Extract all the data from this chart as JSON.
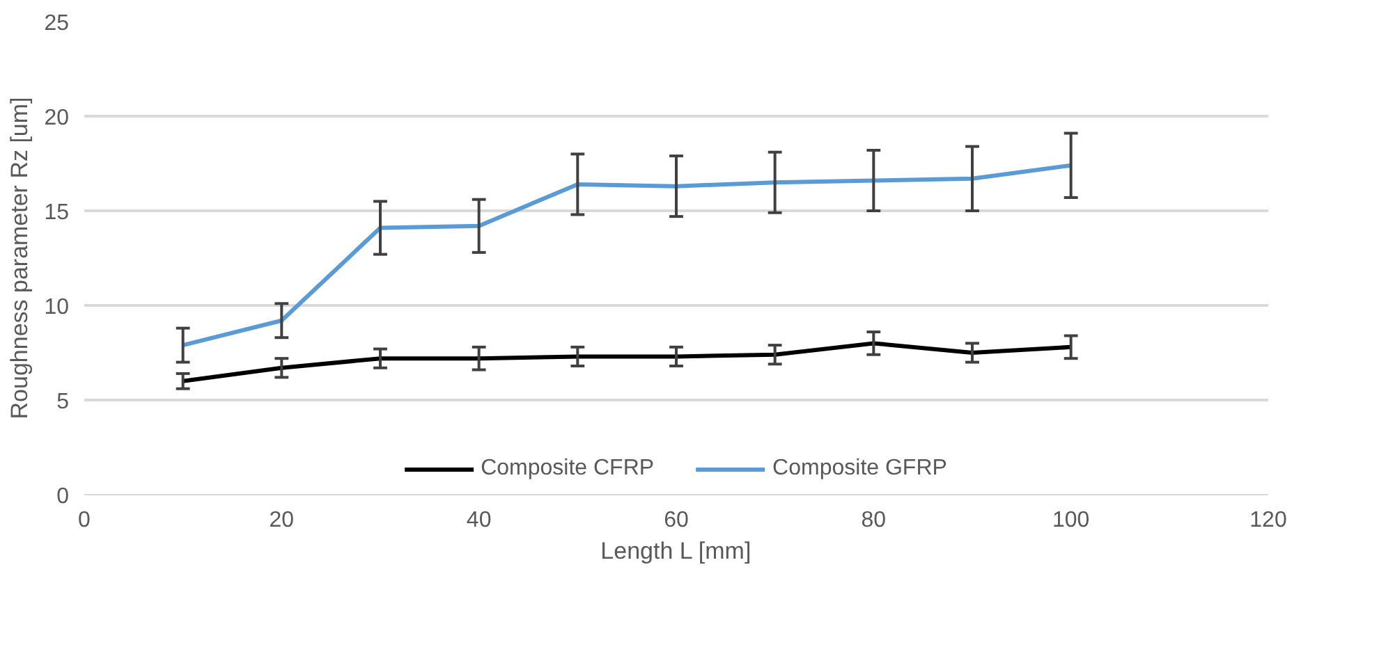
{
  "chart_data": {
    "type": "line",
    "xlabel": "Length L [mm]",
    "ylabel": "Roughness parameter Rz [um]",
    "x": [
      10,
      20,
      30,
      40,
      50,
      60,
      70,
      80,
      90,
      100
    ],
    "series": [
      {
        "name": "Composite CFRP",
        "color": "#000000",
        "values": [
          6.0,
          6.7,
          7.2,
          7.2,
          7.3,
          7.3,
          7.4,
          8.0,
          7.5,
          7.8
        ],
        "errors": [
          0.4,
          0.5,
          0.5,
          0.6,
          0.5,
          0.5,
          0.5,
          0.6,
          0.5,
          0.6
        ]
      },
      {
        "name": "Composite GFRP",
        "color": "#5b9bd5",
        "values": [
          7.9,
          9.2,
          14.1,
          14.2,
          16.4,
          16.3,
          16.5,
          16.6,
          16.7,
          17.4
        ],
        "errors": [
          0.9,
          0.9,
          1.4,
          1.4,
          1.6,
          1.6,
          1.6,
          1.6,
          1.7,
          1.7
        ]
      }
    ],
    "xlim": [
      0,
      120
    ],
    "xticks": [
      0,
      20,
      40,
      60,
      80,
      100,
      120
    ],
    "ylim": [
      0,
      25
    ],
    "yticks": [
      0,
      5,
      10,
      15,
      20,
      25
    ],
    "grid": "y",
    "legend": "bottom",
    "line_style": "solid",
    "marker": "none"
  }
}
